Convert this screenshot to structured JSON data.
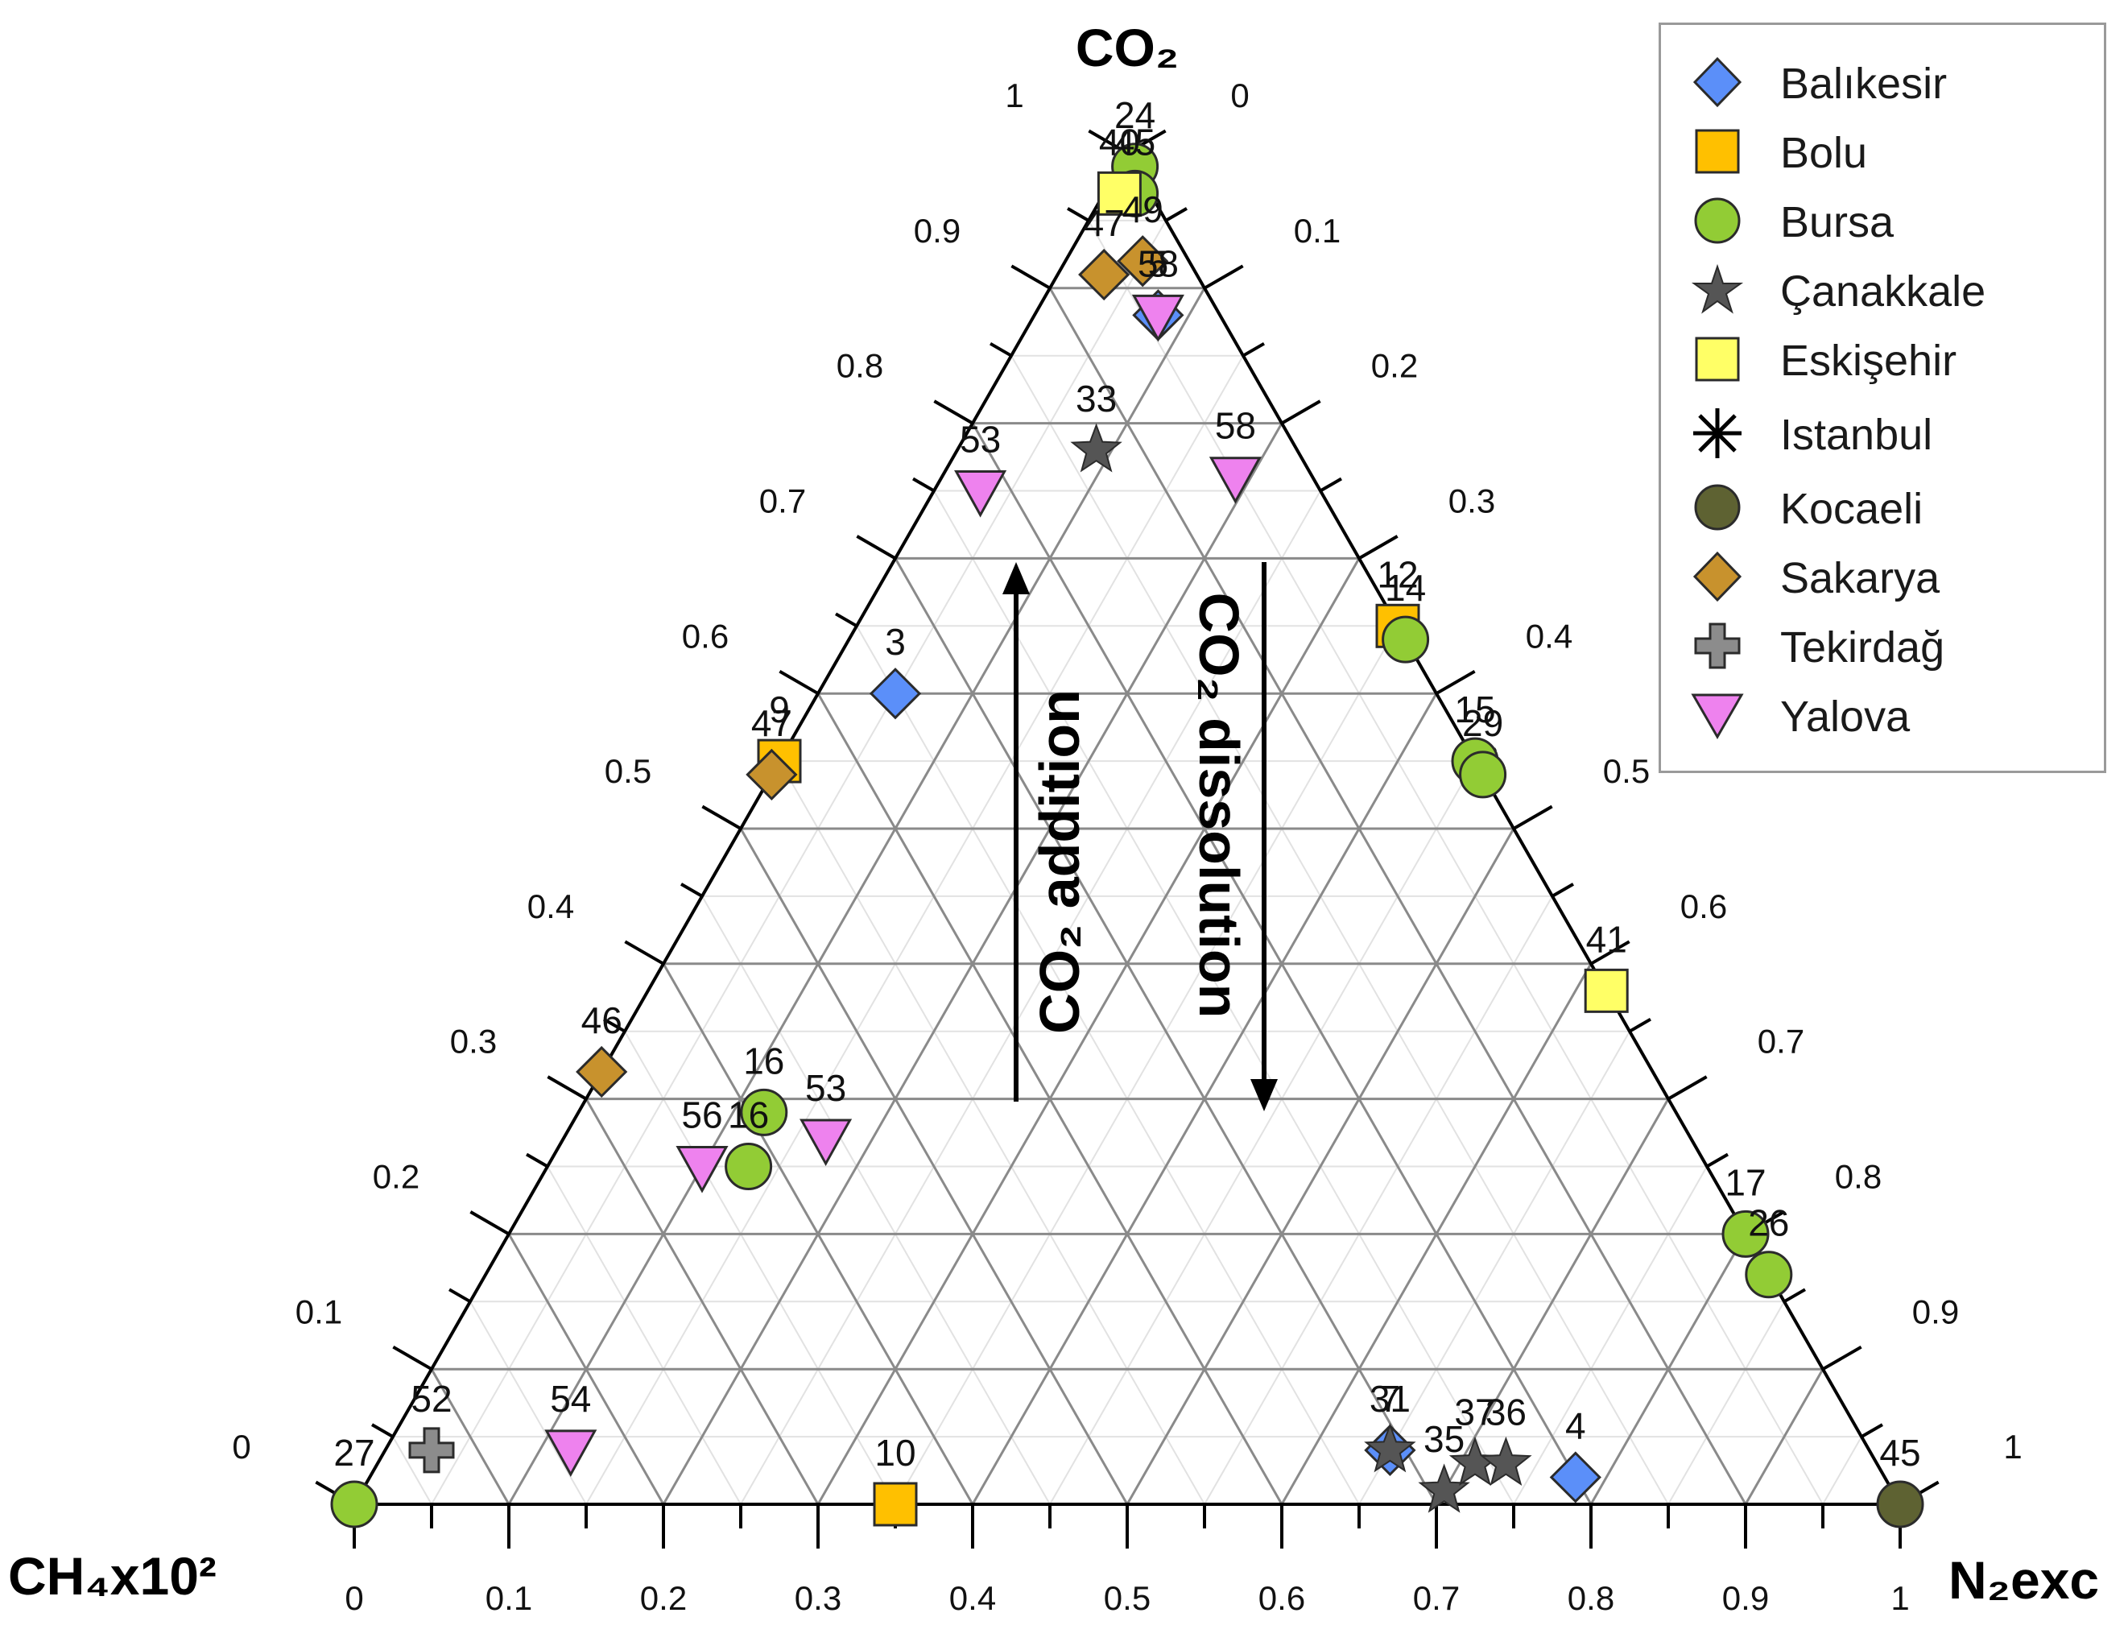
{
  "chart_data": {
    "type": "scatter",
    "subtype": "ternary",
    "axes": {
      "top": "CO₂",
      "left": "CH₄x10²",
      "right": "N₂exc"
    },
    "ticks": [
      "0",
      "0.1",
      "0.2",
      "0.3",
      "0.4",
      "0.5",
      "0.6",
      "0.7",
      "0.8",
      "0.9",
      "1"
    ],
    "grid": true,
    "legend_position": "top-right",
    "annotations": [
      {
        "text": "CO₂ addition",
        "direction": "up"
      },
      {
        "text": "CO₂ dissolution",
        "direction": "down"
      }
    ],
    "series": [
      {
        "name": "Balıkesir",
        "marker": "diamond",
        "color": "#5b8ff9",
        "points": [
          {
            "label": "3",
            "co2": 0.6,
            "ch4": 0.35,
            "n2": 0.05
          },
          {
            "label": "4",
            "co2": 0.02,
            "ch4": 0.2,
            "n2": 0.78
          },
          {
            "label": "7",
            "co2": 0.04,
            "ch4": 0.31,
            "n2": 0.65
          },
          {
            "label": "5",
            "co2": 0.88,
            "ch4": 0.04,
            "n2": 0.08
          }
        ]
      },
      {
        "name": "Bolu",
        "marker": "square",
        "color": "#ffc000",
        "points": [
          {
            "label": "12",
            "co2": 0.65,
            "ch4": 0.0,
            "n2": 0.35
          },
          {
            "label": "10",
            "co2": 0.0,
            "ch4": 0.65,
            "n2": 0.35
          },
          {
            "label": "9",
            "co2": 0.55,
            "ch4": 0.45,
            "n2": 0.0
          }
        ]
      },
      {
        "name": "Bursa",
        "marker": "circle",
        "color": "#92cc35",
        "points": [
          {
            "label": "24",
            "co2": 0.99,
            "ch4": 0.0,
            "n2": 0.01
          },
          {
            "label": "14",
            "co2": 0.64,
            "ch4": 0.0,
            "n2": 0.36
          },
          {
            "label": "15",
            "co2": 0.55,
            "ch4": 0.0,
            "n2": 0.45
          },
          {
            "label": "29",
            "co2": 0.54,
            "ch4": 0.0,
            "n2": 0.46
          },
          {
            "label": "16",
            "co2": 0.29,
            "ch4": 0.59,
            "n2": 0.12
          },
          {
            "label": "16",
            "co2": 0.25,
            "ch4": 0.62,
            "n2": 0.13
          },
          {
            "label": "17",
            "co2": 0.2,
            "ch4": 0.0,
            "n2": 0.8
          },
          {
            "label": "26",
            "co2": 0.17,
            "ch4": 0.0,
            "n2": 0.83
          },
          {
            "label": "27",
            "co2": 0.0,
            "ch4": 1.0,
            "n2": 0.0
          },
          {
            "label": "45",
            "co2": 0.97,
            "ch4": 0.01,
            "n2": 0.02
          }
        ]
      },
      {
        "name": "Çanakkale",
        "marker": "star",
        "color": "#555555",
        "points": [
          {
            "label": "33",
            "co2": 0.78,
            "ch4": 0.13,
            "n2": 0.09
          },
          {
            "label": "31",
            "co2": 0.04,
            "ch4": 0.31,
            "n2": 0.65
          },
          {
            "label": "35",
            "co2": 0.01,
            "ch4": 0.29,
            "n2": 0.7
          },
          {
            "label": "37",
            "co2": 0.03,
            "ch4": 0.26,
            "n2": 0.71
          },
          {
            "label": "36",
            "co2": 0.03,
            "ch4": 0.24,
            "n2": 0.73
          }
        ]
      },
      {
        "name": "Eskişehir",
        "marker": "square",
        "color": "#ffff66",
        "points": [
          {
            "label": "41",
            "co2": 0.38,
            "ch4": 0.0,
            "n2": 0.62
          },
          {
            "label": "40",
            "co2": 0.97,
            "ch4": 0.02,
            "n2": 0.01
          }
        ]
      },
      {
        "name": "Istanbul",
        "marker": "asterisk",
        "color": "#000000",
        "points": []
      },
      {
        "name": "Kocaeli",
        "marker": "circle",
        "color": "#5e6232",
        "points": [
          {
            "label": "45",
            "co2": 0.0,
            "ch4": 0.0,
            "n2": 1.0
          }
        ]
      },
      {
        "name": "Sakarya",
        "marker": "diamond",
        "color": "#c8922d",
        "points": [
          {
            "label": "47",
            "co2": 0.91,
            "ch4": 0.06,
            "n2": 0.03
          },
          {
            "label": "49",
            "co2": 0.92,
            "ch4": 0.03,
            "n2": 0.05
          },
          {
            "label": "47",
            "co2": 0.54,
            "ch4": 0.46,
            "n2": 0.0
          },
          {
            "label": "46",
            "co2": 0.32,
            "ch4": 0.68,
            "n2": 0.0
          }
        ]
      },
      {
        "name": "Tekirdağ",
        "marker": "cross",
        "color": "#8c8c8c",
        "points": [
          {
            "label": "52",
            "co2": 0.04,
            "ch4": 0.93,
            "n2": 0.03
          }
        ]
      },
      {
        "name": "Yalova",
        "marker": "triangle-down",
        "color": "#ee82ee",
        "points": [
          {
            "label": "58",
            "co2": 0.88,
            "ch4": 0.04,
            "n2": 0.08
          },
          {
            "label": "53",
            "co2": 0.75,
            "ch4": 0.22,
            "n2": 0.03
          },
          {
            "label": "58",
            "co2": 0.76,
            "ch4": 0.05,
            "n2": 0.19
          },
          {
            "label": "56",
            "co2": 0.25,
            "ch4": 0.65,
            "n2": 0.1
          },
          {
            "label": "53",
            "co2": 0.27,
            "ch4": 0.56,
            "n2": 0.17
          },
          {
            "label": "54",
            "co2": 0.04,
            "ch4": 0.84,
            "n2": 0.12
          }
        ]
      }
    ]
  }
}
